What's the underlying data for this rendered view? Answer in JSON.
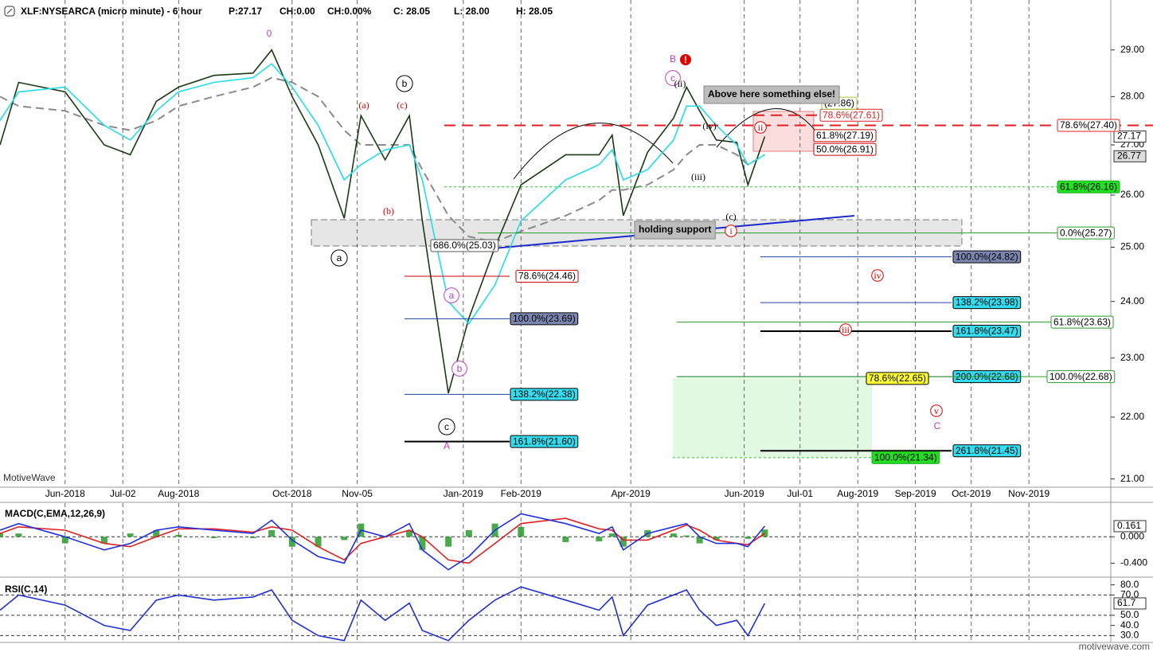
{
  "header": {
    "title": "XLF:NYSEARCA (micro minute) - 6 hour",
    "stats": [
      "P:27.17",
      "CH:0.00",
      "CH:0.00%",
      "C: 28.05",
      "L: 28.00",
      "H: 28.05"
    ]
  },
  "watermark": "MotiveWave",
  "footer": "motivewave.com",
  "alert_icon": "!",
  "notes": [
    "Above here something else!",
    "holding support"
  ],
  "chart_data": [
    {
      "type": "line",
      "log_scale": true,
      "grid": true,
      "x": [
        "2018-04-27",
        "2018-05-07",
        "2018-06-01",
        "2018-06-22",
        "2018-07-06",
        "2018-07-20",
        "2018-08-01",
        "2018-08-20",
        "2018-09-10",
        "2018-09-20",
        "2018-10-01",
        "2018-10-15",
        "2018-10-29",
        "2018-11-07",
        "2018-11-20",
        "2018-12-03",
        "2018-12-10",
        "2018-12-24",
        "2019-01-04",
        "2019-01-18",
        "2019-02-01",
        "2019-02-25",
        "2019-03-15",
        "2019-03-22",
        "2019-03-28",
        "2019-04-10",
        "2019-04-24",
        "2019-05-01",
        "2019-05-08",
        "2019-05-17",
        "2019-05-28",
        "2019-06-03",
        "2019-06-12"
      ],
      "series": [
        {
          "color": "#8a8a8a",
          "style": "dashed",
          "values": [
            28.0,
            27.8,
            27.7,
            27.4,
            27.3,
            27.5,
            27.8,
            28.0,
            28.2,
            28.4,
            28.3,
            28.0,
            27.3,
            27.0,
            27.0,
            27.0,
            26.5,
            25.6,
            25.2,
            25.1,
            25.3,
            25.6,
            25.9,
            26.1,
            26.1,
            26.2,
            26.5,
            26.8,
            27.0,
            27.0,
            26.8,
            26.6,
            26.8
          ]
        },
        {
          "color": "#1a3a14",
          "values": [
            27.0,
            28.3,
            28.1,
            27.0,
            26.8,
            27.9,
            28.2,
            28.45,
            28.5,
            29.0,
            28.0,
            27.0,
            25.55,
            27.6,
            26.7,
            27.6,
            25.5,
            22.4,
            23.7,
            25.0,
            26.2,
            26.8,
            26.8,
            27.2,
            25.6,
            26.85,
            27.55,
            28.2,
            27.7,
            27.1,
            27.05,
            26.2,
            27.17
          ]
        },
        {
          "color": "#22dde8",
          "values": [
            27.5,
            28.1,
            28.2,
            27.4,
            27.1,
            27.7,
            28.1,
            28.3,
            28.4,
            28.7,
            28.2,
            27.4,
            26.3,
            26.6,
            26.9,
            27.0,
            26.3,
            24.0,
            23.6,
            24.3,
            25.5,
            26.3,
            26.6,
            26.9,
            26.3,
            26.5,
            27.1,
            27.8,
            27.8,
            27.4,
            27.0,
            26.6,
            26.8
          ]
        }
      ],
      "xlim": [
        "2018-04-27",
        "2019-12-15"
      ],
      "xticks": [
        {
          "value": "2018-06",
          "label": "Jun-2018"
        },
        {
          "value": "2018-07-02",
          "label": "Jul-02"
        },
        {
          "value": "2018-08",
          "label": "Aug-2018"
        },
        {
          "value": "2018-10",
          "label": "Oct-2018"
        },
        {
          "value": "2018-11-05",
          "label": "Nov-05"
        },
        {
          "value": "2019-01",
          "label": "Jan-2019"
        },
        {
          "value": "2019-02",
          "label": "Feb-2019"
        },
        {
          "value": "2019-04",
          "label": "Apr-2019"
        },
        {
          "value": "2019-06",
          "label": "Jun-2019"
        },
        {
          "value": "2019-07-01",
          "label": "Jul-01"
        },
        {
          "value": "2019-08",
          "label": "Aug-2019"
        },
        {
          "value": "2019-09",
          "label": "Sep-2019"
        },
        {
          "value": "2019-10",
          "label": "Oct-2019"
        },
        {
          "value": "2019-11",
          "label": "Nov-2019"
        }
      ],
      "ylim": [
        20.87,
        30.11
      ],
      "yticks": [
        {
          "value": 29,
          "label": "29.00"
        },
        {
          "value": 28,
          "label": "28.00"
        },
        {
          "value": 27,
          "label": "27.00"
        },
        {
          "value": 26,
          "label": "26.00"
        },
        {
          "value": 25,
          "label": "25.00"
        },
        {
          "value": 24,
          "label": "24.00"
        },
        {
          "value": 23,
          "label": "23.00"
        },
        {
          "value": 22,
          "label": "22.00"
        },
        {
          "value": 21,
          "label": "21.00"
        }
      ],
      "markers": [
        {
          "value": 27.17,
          "fill": "#ffffff"
        },
        {
          "value": 26.77,
          "fill": "#dddddd"
        }
      ],
      "levels": [
        {
          "label": "686.0%(25.03)",
          "value": 25.03,
          "box_fill": "#ffffff",
          "box_border": "#555555"
        },
        {
          "label": "78.6%(24.46)",
          "value": 24.46,
          "line_color": "#cc0000",
          "box_fill": "#ffffff",
          "box_border": "#cc0000"
        },
        {
          "label": "100.0%(23.69)",
          "value": 23.69,
          "line_color": "#2040a0",
          "box_fill": "#7b86b0",
          "box_border": "#000000"
        },
        {
          "label": "138.2%(22.38)",
          "value": 22.38,
          "line_color": "#2040a0",
          "box_fill": "#33ddf0",
          "box_border": "#000000"
        },
        {
          "label": "161.8%(21.60)",
          "value": 21.6,
          "line_color": "#000000",
          "line_width": 2,
          "box_fill": "#33ddf0",
          "box_border": "#000000"
        },
        {
          "label": "100.0%(24.82)",
          "value": 24.82,
          "line_color": "#2040a0",
          "box_fill": "#7b86b0",
          "box_border": "#000000"
        },
        {
          "label": "138.2%(23.98)",
          "value": 23.98,
          "line_color": "#2040a0",
          "box_fill": "#33ddf0",
          "box_border": "#000000"
        },
        {
          "label": "161.8%(23.47)",
          "value": 23.47,
          "line_color": "#000000",
          "line_width": 2,
          "box_fill": "#33ddf0",
          "box_border": "#000000"
        },
        {
          "label": "200.0%(22.68)",
          "value": 22.68,
          "line_color": "#2040a0",
          "box_fill": "#33ddf0",
          "box_border": "#000000"
        },
        {
          "label": "261.8%(21.45)",
          "value": 21.45,
          "line_color": "#000000",
          "line_width": 2,
          "box_fill": "#33ddf0",
          "box_border": "#000000"
        },
        {
          "label": "0.0%(25.27)",
          "value": 25.27,
          "line_color": "#2a9a2a",
          "box_fill": "#ffffff",
          "box_border": "#2a9a2a"
        },
        {
          "label": "61.8%(23.63)",
          "value": 23.63,
          "line_color": "#2a9a2a",
          "box_fill": "#ffffff",
          "box_border": "#2a9a2a"
        },
        {
          "label": "100.0%(22.68)",
          "value": 22.68,
          "line_color": "#2a9a2a",
          "box_fill": "#ffffff",
          "box_border": "#2a9a2a"
        },
        {
          "label": "78.6%(22.65)",
          "value": 22.65,
          "box_fill": "#ffff33",
          "box_border": "#000000"
        },
        {
          "label": "100.0%(21.34)",
          "value": 21.34,
          "line_color": "#22cc22",
          "line_style": "dotted",
          "box_fill": "#22dd22",
          "box_border": "#22aa22"
        },
        {
          "label": "61.8%(26.16)",
          "value": 26.16,
          "line_color": "#22cc22",
          "line_style": "dotted",
          "box_fill": "#22e022",
          "box_border": "#22aa22"
        },
        {
          "label": "78.6%(27.40)",
          "value": 27.4,
          "line_color": "#e02020",
          "line_style": "dashed",
          "line_width": 2,
          "box_fill": "#ffffff",
          "box_border": "#e02020"
        },
        {
          "label": "78.6%(27.61)",
          "value": 27.61,
          "line_color": "#e02020",
          "line_style": "dashed",
          "line_width": 2,
          "box_fill": "#ffffff",
          "box_border": "#e02020"
        },
        {
          "label": "61.8%(27.19)",
          "value": 27.19,
          "box_fill": "#ffffff",
          "box_border": "#cc0000"
        },
        {
          "label": "50.0%(26.91)",
          "value": 26.91,
          "box_fill": "#ffffff",
          "box_border": "#cc0000"
        },
        {
          "label": "(27.86)",
          "value": 27.86,
          "box_fill": "#ffffff",
          "box_border": "#9acd32"
        }
      ],
      "waves": [
        {
          "text": "0",
          "color": "#c040c0"
        },
        {
          "text": "(a)",
          "color": "#e00000"
        },
        {
          "text": "(c)",
          "color": "#e00000"
        },
        {
          "text": "(b)",
          "color": "#e00000"
        },
        {
          "text": "b",
          "color": "#000000",
          "circled": true
        },
        {
          "text": "a",
          "color": "#000000",
          "circled": true
        },
        {
          "text": "c",
          "color": "#000000",
          "circled": true
        },
        {
          "text": "A",
          "color": "#c040c0"
        },
        {
          "text": "a",
          "color": "#c040c0",
          "circled": true
        },
        {
          "text": "b",
          "color": "#c040c0",
          "circled": true
        },
        {
          "text": "B",
          "color": "#c040c0"
        },
        {
          "text": "c",
          "color": "#c040c0",
          "circled": true
        },
        {
          "text": "(ii)",
          "color": "#000000"
        },
        {
          "text": "(iv)",
          "color": "#000000"
        },
        {
          "text": "(iii)",
          "color": "#000000"
        },
        {
          "text": "(c)",
          "color": "#000000"
        },
        {
          "text": "ii",
          "color": "#e00000",
          "circled": true
        },
        {
          "text": "i",
          "color": "#e00000",
          "circled": true
        },
        {
          "text": "iv",
          "color": "#e00000",
          "circled": true
        },
        {
          "text": "iii",
          "color": "#e00000",
          "circled": true
        },
        {
          "text": "v",
          "color": "#e00000",
          "circled": true
        },
        {
          "text": "C",
          "color": "#c040c0"
        }
      ]
    },
    {
      "type": "line",
      "title": "MACD(C,EMA,12,26,9)",
      "x": [
        "2018-04-27",
        "2018-05-07",
        "2018-06-01",
        "2018-06-22",
        "2018-07-06",
        "2018-07-20",
        "2018-08-01",
        "2018-08-20",
        "2018-09-10",
        "2018-09-20",
        "2018-10-01",
        "2018-10-15",
        "2018-10-29",
        "2018-11-07",
        "2018-11-20",
        "2018-12-03",
        "2018-12-10",
        "2018-12-24",
        "2019-01-04",
        "2019-01-18",
        "2019-02-01",
        "2019-02-25",
        "2019-03-15",
        "2019-03-22",
        "2019-03-28",
        "2019-04-10",
        "2019-04-24",
        "2019-05-01",
        "2019-05-08",
        "2019-05-17",
        "2019-05-28",
        "2019-06-03",
        "2019-06-12"
      ],
      "series": [
        {
          "color": "#2a9a2a",
          "type": "bar",
          "values": [
            0.05,
            0.05,
            -0.1,
            -0.1,
            0.05,
            0.1,
            0.03,
            -0.02,
            -0.02,
            0.1,
            -0.15,
            -0.15,
            -0.05,
            0.2,
            0,
            0.1,
            -0.2,
            -0.15,
            0.1,
            0.2,
            0.15,
            -0.08,
            -0.07,
            0.05,
            -0.15,
            0.1,
            0.05,
            0.02,
            -0.1,
            -0.05,
            0,
            -0.03,
            0.11
          ]
        },
        {
          "color": "#e02020",
          "values": [
            0.05,
            0.15,
            0.1,
            -0.1,
            -0.15,
            0.0,
            0.12,
            0.12,
            0.07,
            0.15,
            0.1,
            -0.15,
            -0.35,
            -0.1,
            0.0,
            0.1,
            0.0,
            -0.35,
            -0.4,
            -0.1,
            0.2,
            0.28,
            0.12,
            0.1,
            -0.05,
            -0.05,
            0.1,
            0.18,
            0.1,
            -0.05,
            -0.1,
            -0.12,
            0.05
          ]
        },
        {
          "color": "#2030e0",
          "values": [
            0.1,
            0.2,
            0.0,
            -0.2,
            -0.1,
            0.1,
            0.15,
            0.1,
            0.05,
            0.25,
            -0.05,
            -0.3,
            -0.4,
            0.1,
            0.0,
            0.2,
            -0.2,
            -0.5,
            -0.3,
            0.1,
            0.35,
            0.2,
            0.05,
            0.15,
            -0.2,
            0.05,
            0.15,
            0.2,
            0.0,
            -0.1,
            -0.1,
            -0.15,
            0.161
          ]
        }
      ],
      "xlim": [
        "2018-04-27",
        "2019-12-15"
      ],
      "ylim": [
        -0.6,
        0.51
      ],
      "yticks": [
        {
          "value": 0,
          "label": "0.000"
        },
        {
          "value": -0.4,
          "label": "-0.400"
        }
      ],
      "levels": [
        0
      ],
      "markers": [
        {
          "value": 0.161,
          "fill": "#ffffff"
        }
      ]
    },
    {
      "type": "line",
      "title": "RSI(C,14)",
      "x": [
        "2018-04-27",
        "2018-05-07",
        "2018-06-01",
        "2018-06-22",
        "2018-07-06",
        "2018-07-20",
        "2018-08-01",
        "2018-08-20",
        "2018-09-10",
        "2018-09-20",
        "2018-10-01",
        "2018-10-15",
        "2018-10-29",
        "2018-11-07",
        "2018-11-20",
        "2018-12-03",
        "2018-12-10",
        "2018-12-24",
        "2019-01-04",
        "2019-01-18",
        "2019-02-01",
        "2019-02-25",
        "2019-03-15",
        "2019-03-22",
        "2019-03-28",
        "2019-04-10",
        "2019-04-24",
        "2019-05-01",
        "2019-05-08",
        "2019-05-17",
        "2019-05-28",
        "2019-06-03",
        "2019-06-12"
      ],
      "series": [
        {
          "color": "#2030d0",
          "values": [
            55,
            70,
            60,
            40,
            35,
            65,
            70,
            65,
            68,
            75,
            45,
            30,
            25,
            65,
            45,
            62,
            35,
            25,
            45,
            65,
            78,
            65,
            55,
            68,
            30,
            60,
            70,
            75,
            55,
            40,
            45,
            30,
            61.7
          ]
        }
      ],
      "xlim": [
        "2018-04-27",
        "2019-12-15"
      ],
      "ylim": [
        24,
        86
      ],
      "yticks": [
        {
          "value": 80,
          "label": "80.0"
        },
        {
          "value": 70,
          "label": "70.0"
        },
        {
          "value": 50,
          "label": "50.0"
        },
        {
          "value": 40,
          "label": "40.0"
        },
        {
          "value": 30,
          "label": "30.0"
        }
      ],
      "levels": [
        70,
        50,
        30
      ],
      "markers": [
        {
          "value": 61.7,
          "fill": "#ffffff"
        }
      ]
    }
  ]
}
